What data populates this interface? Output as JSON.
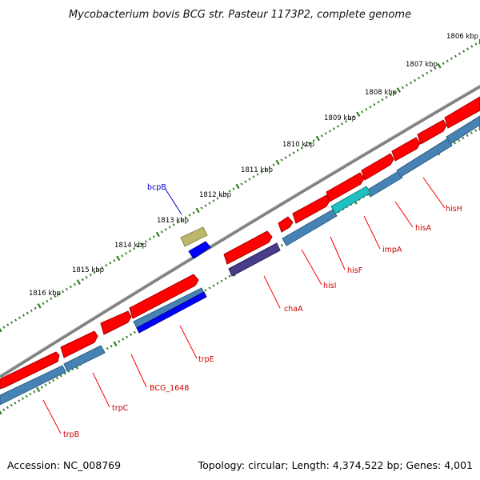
{
  "title": "Mycobacterium bovis BCG str. Pasteur 1173P2, complete genome",
  "footer": {
    "accession": "Accession: NC_008769",
    "summary": "Topology: circular; Length: 4,374,522 bp; Genes: 4,001"
  },
  "ruler_labels": [
    "1806 kbp",
    "1807 kbp",
    "1808 kbp",
    "1809 kbp",
    "1810 kbp",
    "1811 kbp",
    "1812 kbp",
    "1813 kbp",
    "1814 kbp",
    "1815 kbp",
    "1816 kbp"
  ],
  "genes": [
    "hisH",
    "hisA",
    "impA",
    "hisF",
    "hisI",
    "chaA",
    "trpE",
    "BCG_1648",
    "trpC",
    "trpB",
    "bcpB"
  ],
  "colors": {
    "forward_cds": "#ff0000",
    "reverse_cds": "#4682b4",
    "backbone": "#808080",
    "ruler": "#2e7d20",
    "label_red": "#cc0000",
    "label_blue": "#0000cc",
    "cyan_feature": "#20c0c0",
    "purple_feature": "#483d8b",
    "olive_feature": "#bdb76b",
    "blue_feature": "#0000ff"
  }
}
